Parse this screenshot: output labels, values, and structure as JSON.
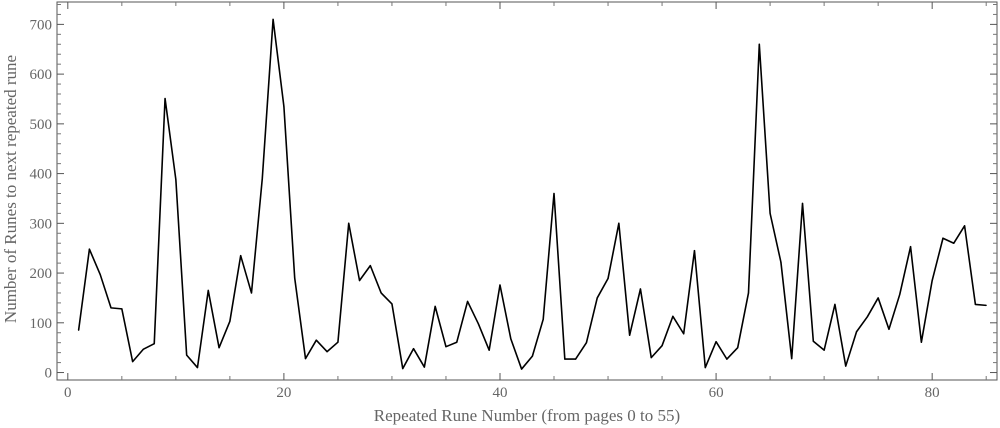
{
  "chart_data": {
    "type": "line",
    "title": "",
    "xlabel": "Repeated Rune Number (from pages 0 to 55)",
    "ylabel": "Number of Runes to next repeated rune",
    "xlim": [
      -1,
      86
    ],
    "ylim": [
      -15,
      745
    ],
    "x_ticks": [
      0,
      20,
      40,
      60,
      80
    ],
    "y_ticks": [
      0,
      100,
      200,
      300,
      400,
      500,
      600,
      700
    ],
    "grid": false,
    "legend": "none",
    "line_color": "#000000",
    "series": [
      {
        "x": [
          1,
          2,
          3,
          4,
          5,
          6,
          7,
          8,
          9,
          10,
          11,
          12,
          13,
          14,
          15,
          16,
          17,
          18,
          19,
          20,
          21,
          22,
          23,
          24,
          25,
          26,
          27,
          28,
          29,
          30,
          31,
          32,
          33,
          34,
          35,
          36,
          37,
          38,
          39,
          40,
          41,
          42,
          43,
          44,
          45,
          46,
          47,
          48,
          49,
          50,
          51,
          52,
          53,
          54,
          55,
          56,
          57,
          58,
          59,
          60,
          61,
          62,
          63,
          64,
          65,
          66,
          67,
          68,
          69,
          70,
          71,
          72,
          73,
          74,
          75,
          76,
          77,
          78,
          79,
          80,
          81,
          82,
          83,
          84,
          85
        ],
        "values": [
          85,
          248,
          197,
          130,
          128,
          22,
          47,
          58,
          551,
          388,
          35,
          10,
          165,
          50,
          103,
          235,
          160,
          390,
          710,
          535,
          190,
          28,
          65,
          42,
          61,
          300,
          185,
          215,
          160,
          138,
          8,
          48,
          11,
          133,
          52,
          61,
          143,
          98,
          45,
          176,
          68,
          7,
          33,
          107,
          360,
          27,
          27,
          60,
          150,
          189,
          300,
          75,
          168,
          30,
          54,
          113,
          78,
          245,
          10,
          62,
          27,
          50,
          160,
          660,
          320,
          222,
          28,
          340,
          63,
          45,
          137,
          13,
          82,
          112,
          150,
          87,
          157,
          253,
          61,
          185,
          270,
          260,
          295,
          137,
          135
        ]
      }
    ]
  }
}
